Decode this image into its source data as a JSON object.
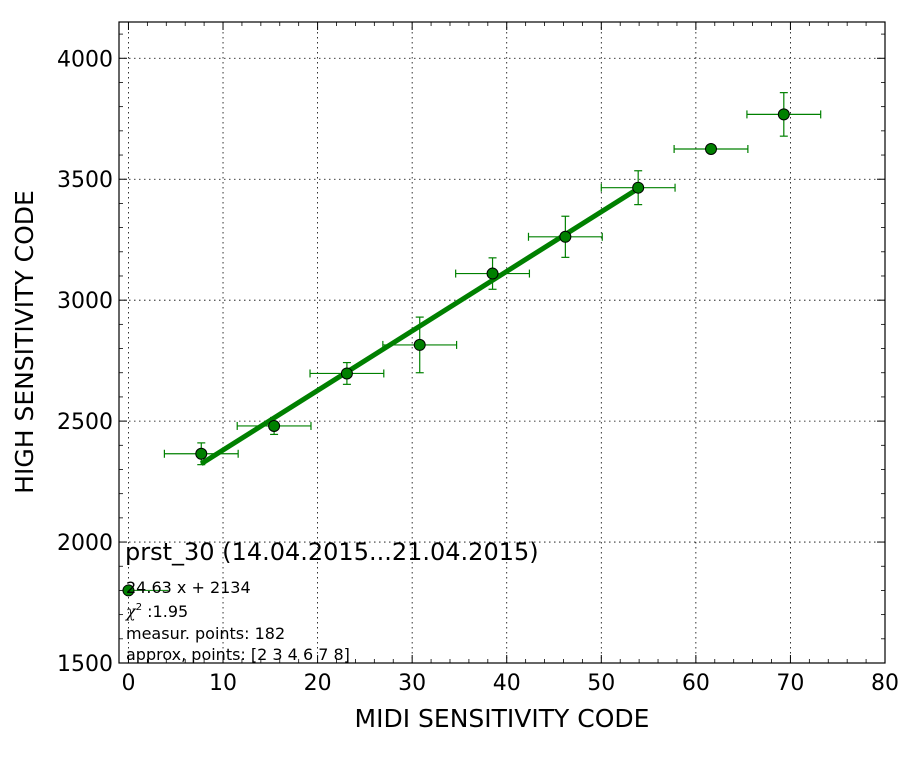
{
  "chart_data": {
    "type": "scatter",
    "title": "",
    "xlabel": "MIDI SENSITIVITY CODE",
    "ylabel": "HIGH SENSITIVITY CODE",
    "xlim": [
      -1,
      80
    ],
    "ylim": [
      1500,
      4150
    ],
    "xticks": [
      "0",
      "10",
      "20",
      "30",
      "40",
      "50",
      "60",
      "70",
      "80"
    ],
    "yticks": [
      "1500",
      "2000",
      "2500",
      "3000",
      "3500",
      "4000"
    ],
    "grid": true,
    "point_color": "#008000",
    "fit_color": "#008000",
    "series": [
      {
        "x": [
          7.7,
          15.4,
          23.1,
          30.8,
          38.5,
          46.2,
          53.9,
          61.6,
          69.3
        ],
        "y": [
          2365,
          2480,
          2697,
          2815,
          3110,
          3262,
          3465,
          3625,
          3768
        ],
        "x_err": [
          3.9,
          3.9,
          3.9,
          3.9,
          3.9,
          3.9,
          3.9,
          3.9,
          3.9
        ],
        "y_err": [
          45,
          35,
          45,
          115,
          65,
          85,
          70,
          0,
          90
        ]
      }
    ],
    "fit": {
      "slope": 24.63,
      "intercept": 2134,
      "x_range": [
        7.7,
        53.9
      ]
    },
    "legend_marker": {
      "x": 0,
      "y": 1800
    },
    "annotations": {
      "name": "prst_30 (14.04.2015...21.04.2015)",
      "equation": "24.63 x + 2134",
      "chi2_symbol": "χ",
      "chi2_sup": "2",
      "chi2_value": " :1.95",
      "measur": "measur. points: 182",
      "approx": "approx, points: [2 3 4 6 7 8]"
    }
  }
}
